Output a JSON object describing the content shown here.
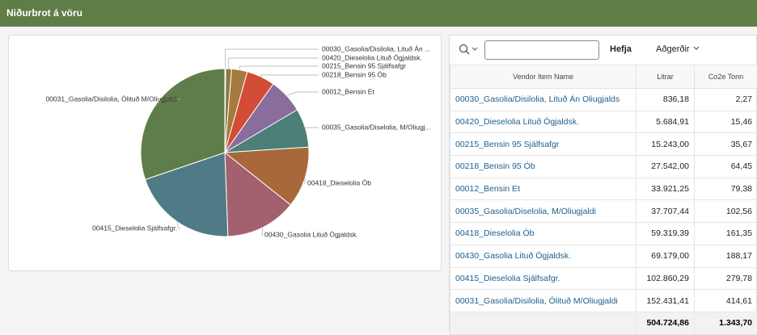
{
  "header": {
    "title": "Niðurbrot á vöru"
  },
  "chart_data": {
    "type": "pie",
    "categories": [
      "00030_Gasolia/Disilolia, Lituð Án ...",
      "00420_Dieselolia Lituð Ógjaldsk.",
      "00215_Bensin 95 Sjálfsafgr",
      "00218_Bensin 95 Ób",
      "00012_Bensin Et",
      "00035_Gasolia/Diselolia, M/Oliugj...",
      "00418_Dieselolia Ób",
      "00430_Gasolia Lituð Ógjaldsk.",
      "00415_Dieselolia Sjálfsafgr.",
      "00031_Gasolia/Disilolia, Ólituð M/Oliugjaldi"
    ],
    "values": [
      836.18,
      5684.91,
      15243,
      27542,
      33921.25,
      37707.44,
      59319.39,
      69179,
      102860.29,
      152431.41
    ],
    "colors": [
      "#4f9a86",
      "#8a7a42",
      "#a57a3c",
      "#d24c38",
      "#8a6d9c",
      "#4b7f78",
      "#a8683a",
      "#a3606f",
      "#4f7b86",
      "#5f7d4a"
    ]
  },
  "toolbar": {
    "button": "Hefja",
    "menu": "Aðgerðir"
  },
  "table": {
    "columns": [
      "Vendor Item Name",
      "Litrar",
      "Co2e Tonn"
    ],
    "rows": [
      [
        "00030_Gasolia/Disilolia, Lituð Án Oliugjalds",
        "836,18",
        "2,27"
      ],
      [
        "00420_Dieselolia Lituð Ógjaldsk.",
        "5.684,91",
        "15,46"
      ],
      [
        "00215_Bensin 95 Sjálfsafgr",
        "15.243,00",
        "35,67"
      ],
      [
        "00218_Bensin 95 Ób",
        "27.542,00",
        "64,45"
      ],
      [
        "00012_Bensin Et",
        "33.921,25",
        "79,38"
      ],
      [
        "00035_Gasolia/Diselolia, M/Oliugjaldi",
        "37.707,44",
        "102,56"
      ],
      [
        "00418_Dieselolia Ób",
        "59.319,39",
        "161,35"
      ],
      [
        "00430_Gasolia Lituð Ógjaldsk.",
        "69.179,00",
        "188,17"
      ],
      [
        "00415_Dieselolia Sjálfsafgr.",
        "102.860,29",
        "279,78"
      ],
      [
        "00031_Gasolia/Disilolia, Ólituð M/Oliugjaldi",
        "152.431,41",
        "414,61"
      ]
    ],
    "totals": [
      "504.724,86",
      "1.343,70"
    ]
  }
}
